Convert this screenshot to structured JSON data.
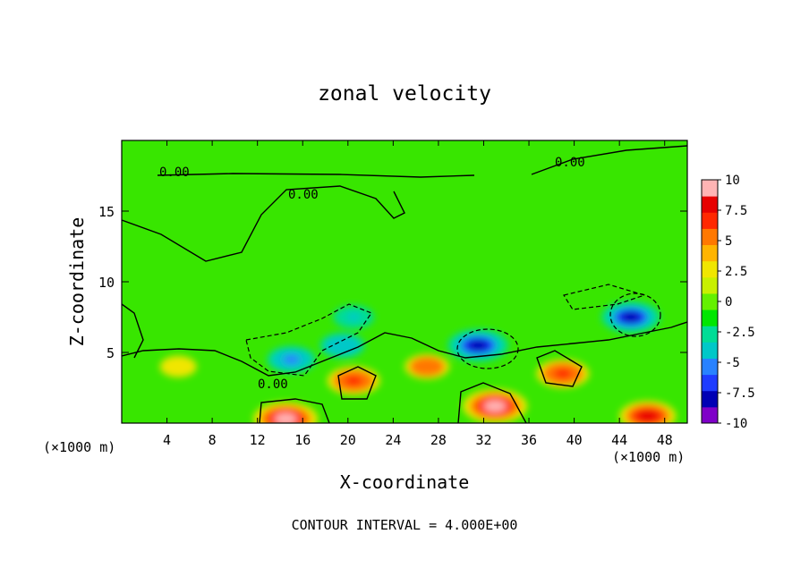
{
  "chart_data": {
    "type": "heatmap",
    "title": "zonal velocity",
    "xlabel": "X-coordinate",
    "ylabel": "Z-coordinate",
    "x_unit": "(×1000 m)",
    "x_unit_right": "(×1000 m)",
    "footer": "CONTOUR INTERVAL = 4.000E+00",
    "xlim": [
      0,
      50
    ],
    "ylim": [
      0,
      20
    ],
    "x_ticks": [
      "4",
      "8",
      "12",
      "16",
      "20",
      "24",
      "28",
      "32",
      "36",
      "40",
      "44",
      "48"
    ],
    "y_ticks": [
      "5",
      "10",
      "15"
    ],
    "contour_labels": [
      "0.00",
      "0.00",
      "0.00",
      "0.00"
    ],
    "colorbar": {
      "ticks": [
        "10",
        "7.5",
        "5",
        "2.5",
        "0",
        "-2.5",
        "-5",
        "-7.5",
        "-10"
      ],
      "min": -10,
      "max": 10,
      "colors": [
        "#7f00c8",
        "#0000b4",
        "#1e3cff",
        "#2882ff",
        "#00c8c8",
        "#00dc96",
        "#00e600",
        "#64f000",
        "#c8f000",
        "#f0e600",
        "#ffb400",
        "#ff7800",
        "#ff2800",
        "#e60000",
        "#ffb4b4"
      ]
    },
    "features": [
      {
        "x": 31.5,
        "z": 5.5,
        "value": -9
      },
      {
        "x": 45.0,
        "z": 7.5,
        "value": -8.5
      },
      {
        "x": 15.0,
        "z": 4.5,
        "value": -6
      },
      {
        "x": 19.5,
        "z": 5.5,
        "value": -5
      },
      {
        "x": 20.5,
        "z": 7.5,
        "value": -4
      },
      {
        "x": 14.5,
        "z": 0.3,
        "value": 10
      },
      {
        "x": 33.0,
        "z": 1.2,
        "value": 10
      },
      {
        "x": 39.0,
        "z": 3.5,
        "value": 7
      },
      {
        "x": 20.5,
        "z": 3.0,
        "value": 7
      },
      {
        "x": 46.5,
        "z": 0.5,
        "value": 8
      },
      {
        "x": 27.0,
        "z": 4.0,
        "value": 5
      },
      {
        "x": 5.0,
        "z": 4.0,
        "value": 3
      }
    ]
  }
}
